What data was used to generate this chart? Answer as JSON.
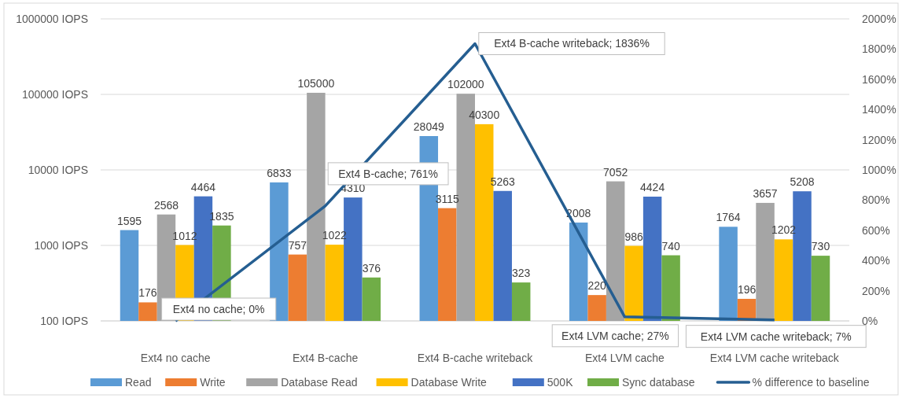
{
  "chart_data": {
    "type": "bar",
    "log": "y",
    "grid": "y",
    "legend": "bottom",
    "data_labels": true,
    "categories": [
      "Ext4 no cache",
      "Ext4 B-cache",
      "Ext4 B-cache writeback",
      "Ext4 LVM cache",
      "Ext4 LVM cache writeback"
    ],
    "series": [
      {
        "name": "Read",
        "color": "#5b9bd5",
        "values": [
          1595,
          6833,
          28049,
          2008,
          1764
        ]
      },
      {
        "name": "Write",
        "color": "#ed7d31",
        "values": [
          176,
          757,
          3115,
          220,
          196
        ]
      },
      {
        "name": "Database Read",
        "color": "#a5a5a5",
        "values": [
          2568,
          105000,
          102000,
          7052,
          3657
        ]
      },
      {
        "name": "Database Write",
        "color": "#ffc000",
        "values": [
          1012,
          1022,
          40300,
          986,
          1202
        ]
      },
      {
        "name": "500K",
        "color": "#4472c4",
        "values": [
          4464,
          4310,
          5263,
          4424,
          5208
        ]
      },
      {
        "name": "Sync database",
        "color": "#70ad47",
        "values": [
          1835,
          376,
          323,
          740,
          730
        ]
      },
      {
        "name": "% difference to baseline",
        "type": "line",
        "axis": "y2",
        "color": "#255e91",
        "marker": "none",
        "values": [
          0,
          761,
          1836,
          27,
          7
        ],
        "value_labels": [
          "Ext4 no cache; 0%",
          "Ext4 B-cache; 761%",
          "Ext4 B-cache writeback; 1836%",
          "Ext4 LVM cache; 27%",
          "Ext4 LVM cache writeback; 7%"
        ]
      }
    ],
    "ylim": [
      100,
      1000000
    ],
    "yticks": [
      {
        "value": 100,
        "label": "100 IOPS"
      },
      {
        "value": 1000,
        "label": "1000 IOPS"
      },
      {
        "value": 10000,
        "label": "10000 IOPS"
      },
      {
        "value": 100000,
        "label": "100000 IOPS"
      },
      {
        "value": 1000000,
        "label": "1000000 IOPS"
      }
    ],
    "y2lim": [
      0,
      2000
    ],
    "y2ticks": [
      {
        "value": 0,
        "label": "0%"
      },
      {
        "value": 200,
        "label": "200%"
      },
      {
        "value": 400,
        "label": "400%"
      },
      {
        "value": 600,
        "label": "600%"
      },
      {
        "value": 800,
        "label": "800%"
      },
      {
        "value": 1000,
        "label": "1000%"
      },
      {
        "value": 1200,
        "label": "1200%"
      },
      {
        "value": 1400,
        "label": "1400%"
      },
      {
        "value": 1600,
        "label": "1600%"
      },
      {
        "value": 1800,
        "label": "1800%"
      },
      {
        "value": 2000,
        "label": "2000%"
      }
    ]
  }
}
